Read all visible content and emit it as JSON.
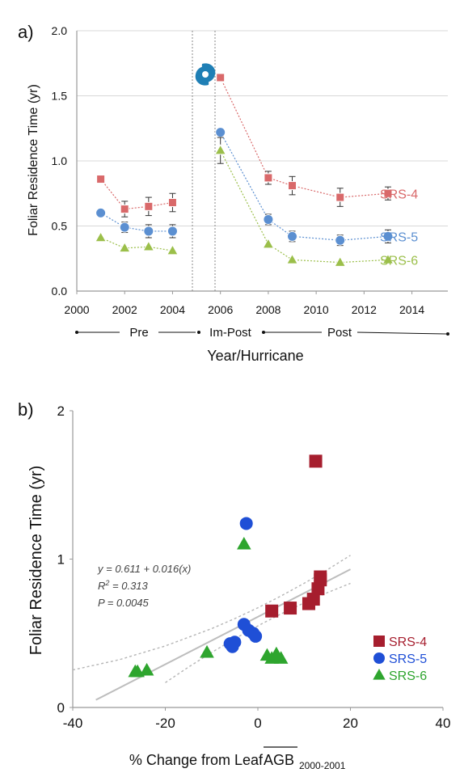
{
  "colors": {
    "srs4": "#d9696a",
    "srs5": "#5b8fd1",
    "srs6": "#9bbf4a",
    "srs4b": "#a61e2e",
    "srs5b": "#1f4fd6",
    "srs6b": "#2ea52e",
    "hurricane": "#1f7fb5"
  },
  "chart_data": [
    {
      "type": "line",
      "panel_label": "a)",
      "ylabel": "Foliar Residence Time (yr)",
      "xlabel": "Year/Hurricane",
      "xlim": [
        2000,
        2015.5
      ],
      "ylim": [
        0,
        2.0
      ],
      "xticks": [
        "2000",
        "2002",
        "2004",
        "2006",
        "2008",
        "2010",
        "2012",
        "2014"
      ],
      "yticks": [
        "0.0",
        "0.5",
        "1.0",
        "1.5",
        "2.0"
      ],
      "hurricane_icon": "hurricane-icon",
      "periods": [
        "Pre",
        "Im-Post",
        "Post"
      ],
      "series": [
        {
          "name": "SRS-4",
          "color_key": "srs4",
          "marker": "square",
          "segments": [
            {
              "x": [
                2001,
                2002,
                2003,
                2004
              ],
              "y": [
                0.86,
                0.63,
                0.65,
                0.68
              ],
              "err": [
                0,
                0.06,
                0.07,
                0.07
              ]
            },
            {
              "x": [
                2006,
                2008,
                2009,
                2011,
                2013
              ],
              "y": [
                1.64,
                0.87,
                0.81,
                0.72,
                0.75
              ],
              "err": [
                0,
                0.05,
                0.07,
                0.07,
                0.05
              ]
            }
          ]
        },
        {
          "name": "SRS-5",
          "color_key": "srs5",
          "marker": "circle",
          "segments": [
            {
              "x": [
                2001,
                2002,
                2003,
                2004
              ],
              "y": [
                0.6,
                0.49,
                0.46,
                0.46
              ],
              "err": [
                0,
                0.04,
                0.05,
                0.05
              ]
            },
            {
              "x": [
                2006,
                2008,
                2009,
                2011,
                2013
              ],
              "y": [
                1.22,
                0.55,
                0.42,
                0.39,
                0.42
              ],
              "err": [
                0,
                0.04,
                0.04,
                0.04,
                0.05
              ]
            }
          ]
        },
        {
          "name": "SRS-6",
          "color_key": "srs6",
          "marker": "triangle",
          "segments": [
            {
              "x": [
                2001,
                2002,
                2003,
                2004
              ],
              "y": [
                0.41,
                0.33,
                0.34,
                0.31
              ],
              "err": [
                0,
                0,
                0,
                0
              ]
            },
            {
              "x": [
                2006,
                2008,
                2009,
                2011,
                2013
              ],
              "y": [
                1.08,
                0.36,
                0.24,
                0.22,
                0.24
              ],
              "err": [
                0.1,
                0,
                0,
                0,
                0
              ]
            }
          ]
        }
      ]
    },
    {
      "type": "scatter",
      "panel_label": "b)",
      "ylabel": "Foliar Residence Time (yr)",
      "xlabel_main": "% Change from Leaf ",
      "xlabel_over": "AGB",
      "xlabel_sub": "2000-2001",
      "xlim": [
        -40,
        40
      ],
      "ylim": [
        0,
        2
      ],
      "xticks": [
        "-40",
        "-20",
        "0",
        "20",
        "40"
      ],
      "yticks": [
        "0",
        "1",
        "2"
      ],
      "equation": [
        "y = 0.611 + 0.016(x)",
        "R2 = 0.313",
        "P = 0.0045"
      ],
      "fit": {
        "intercept": 0.611,
        "slope": 0.016,
        "x_range": [
          -35,
          20
        ]
      },
      "series": [
        {
          "name": "SRS-4",
          "color_key": "srs4b",
          "marker": "square",
          "x": [
            3,
            7,
            11,
            12,
            13,
            13.5,
            13.5,
            12.5
          ],
          "y": [
            0.65,
            0.67,
            0.7,
            0.73,
            0.8,
            0.86,
            0.88,
            1.66
          ]
        },
        {
          "name": "SRS-5",
          "color_key": "srs5b",
          "marker": "circle",
          "x": [
            -6,
            -5.5,
            -5,
            -3,
            -2,
            -1,
            -0.5,
            -2.5
          ],
          "y": [
            0.43,
            0.41,
            0.44,
            0.56,
            0.52,
            0.5,
            0.48,
            1.24
          ]
        },
        {
          "name": "SRS-6",
          "color_key": "srs6b",
          "marker": "triangle",
          "x": [
            -26.5,
            -26,
            -24,
            -11,
            2,
            3,
            4,
            5,
            -3
          ],
          "y": [
            0.24,
            0.24,
            0.25,
            0.37,
            0.35,
            0.33,
            0.36,
            0.33,
            1.1
          ]
        }
      ]
    }
  ]
}
